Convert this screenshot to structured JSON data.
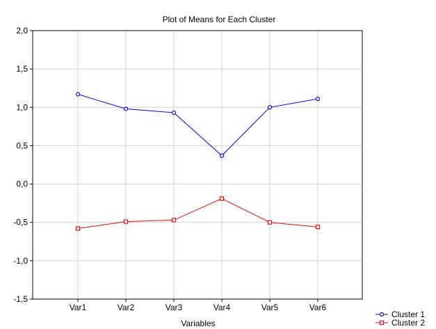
{
  "chart_data": {
    "type": "line",
    "title": "Plot of Means for Each Cluster",
    "xlabel": "Variables",
    "ylabel": "",
    "categories": [
      "Var1",
      "Var2",
      "Var3",
      "Var4",
      "Var5",
      "Var6"
    ],
    "ylim": [
      -1.5,
      2.0
    ],
    "yticks": [
      2.0,
      1.5,
      1.0,
      0.5,
      0.0,
      -0.5,
      -1.0,
      -1.5
    ],
    "ytick_labels": [
      "2,0",
      "1,5",
      "1,0",
      "0,5",
      "0,0",
      "-0,5",
      "-1,0",
      "-1,5"
    ],
    "grid": true,
    "legend_position": "bottom-right",
    "series": [
      {
        "name": "Cluster  1",
        "color": "#0000ff",
        "marker": "circle",
        "values": [
          1.17,
          0.98,
          0.93,
          0.37,
          1.0,
          1.11
        ]
      },
      {
        "name": "Cluster  2",
        "color": "#ff0000",
        "marker": "square",
        "values": [
          -0.58,
          -0.49,
          -0.47,
          -0.19,
          -0.5,
          -0.56
        ]
      }
    ]
  }
}
